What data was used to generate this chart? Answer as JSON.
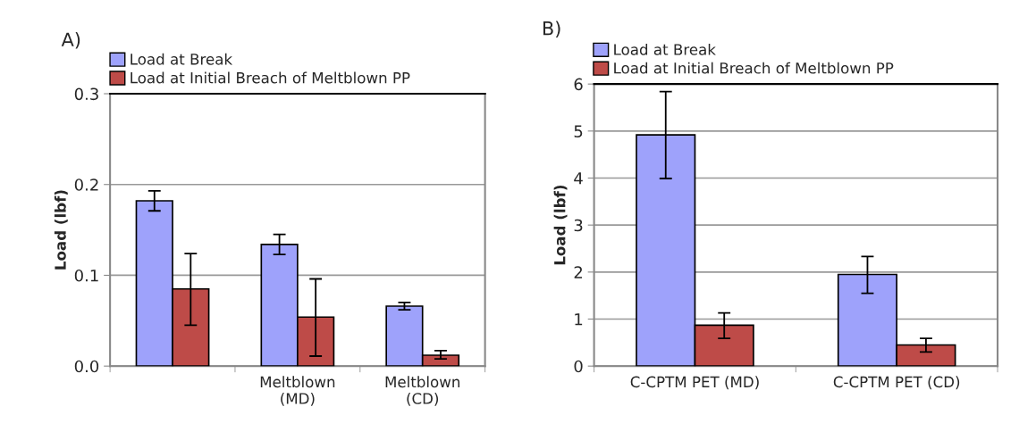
{
  "chart_data": [
    {
      "type": "bar",
      "title": "A)",
      "ylabel": "Load (lbf)",
      "categories": [
        null,
        "Meltblown\n(MD)",
        "Meltblown\n(CD)"
      ],
      "ylim": [
        0,
        0.3
      ],
      "yticks": [
        {
          "value": 0,
          "label": "0.0"
        },
        0.1,
        0.2,
        0.3
      ],
      "grid": "y",
      "legend": "top",
      "series": [
        {
          "name": "Load at Break",
          "color": "#9ea2fb",
          "values": [
            0.182,
            0.134,
            0.066
          ],
          "errors": [
            [
              0.171,
              0.193
            ],
            [
              0.123,
              0.145
            ],
            [
              0.062,
              0.07
            ]
          ]
        },
        {
          "name": "Load at Initial Breach of Meltblown PP",
          "color": "#be4b48",
          "values": [
            0.085,
            0.054,
            0.012
          ],
          "errors": [
            [
              0.045,
              0.124
            ],
            [
              0.011,
              0.096
            ],
            [
              0.008,
              0.017
            ]
          ]
        }
      ]
    },
    {
      "type": "bar",
      "title": "B)",
      "ylabel": "Load (lbf)",
      "categories": [
        "C-CPTM PET (MD)",
        "C-CPTM PET (CD)"
      ],
      "ylim": [
        0,
        6
      ],
      "yticks": [
        0,
        1,
        2,
        3,
        4,
        5,
        6
      ],
      "grid": "y",
      "legend": "top",
      "series": [
        {
          "name": "Load at Break",
          "color": "#9ea2fb",
          "values": [
            4.92,
            1.95
          ],
          "errors": [
            [
              3.99,
              5.84
            ],
            [
              1.55,
              2.33
            ]
          ]
        },
        {
          "name": "Load at Initial Breach of Meltblown PP",
          "color": "#be4b48",
          "values": [
            0.87,
            0.45
          ],
          "errors": [
            [
              0.59,
              1.13
            ],
            [
              0.3,
              0.59
            ]
          ]
        }
      ]
    }
  ]
}
